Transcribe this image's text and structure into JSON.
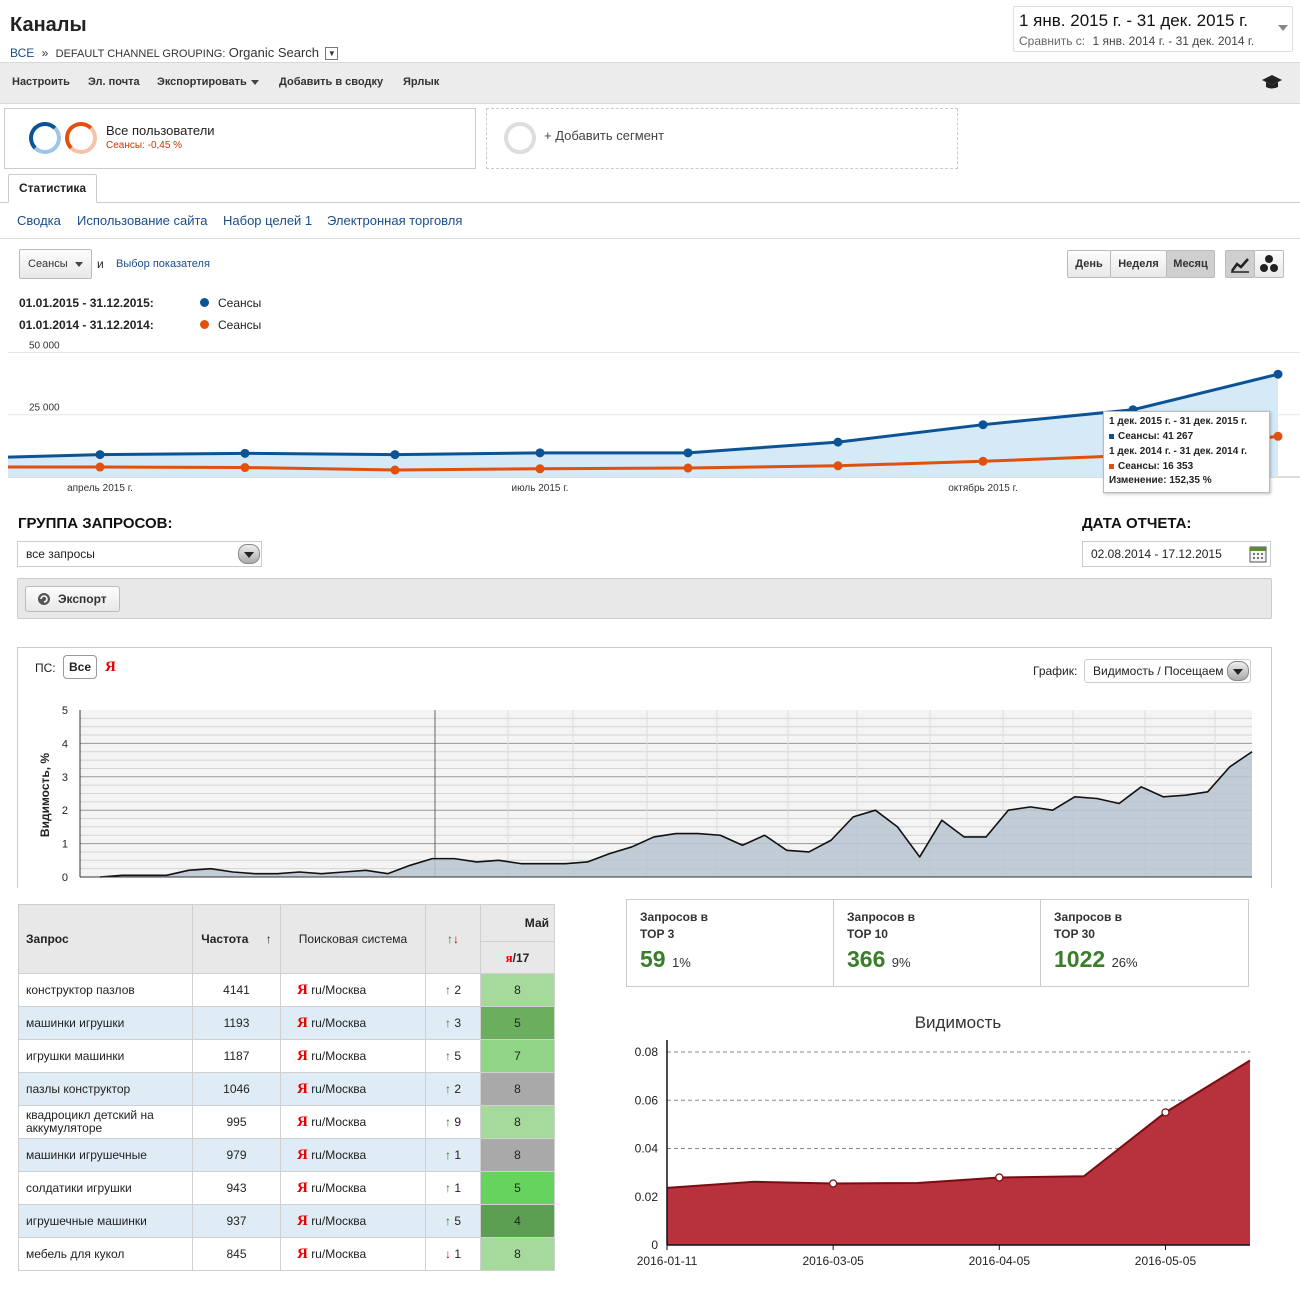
{
  "header": {
    "title": "Каналы",
    "breadcrumb_all": "ВСЕ",
    "breadcrumb_sep": "»",
    "breadcrumb_group": "DEFAULT CHANNEL GROUPING:",
    "breadcrumb_value": "Organic Search",
    "date_main": "1 янв. 2015 г. - 31 дек. 2015 г.",
    "date_compare_label": "Сравнить с:",
    "date_compare": "1 янв. 2014 г. - 31 дек. 2014 г."
  },
  "toolbar": {
    "customize": "Настроить",
    "email": "Эл. почта",
    "export": "Экспортировать",
    "add_dashboard": "Добавить в сводку",
    "shortcut": "Ярлык"
  },
  "segments": {
    "all_users": "Все пользователи",
    "all_users_sub": "Сеансы: -0,45 %",
    "add_segment": "+ Добавить сегмент"
  },
  "tabs": {
    "stats": "Статистика",
    "subnav": [
      "Сводка",
      "Использование сайта",
      "Набор целей 1",
      "Электронная торговля"
    ]
  },
  "chart_controls": {
    "metric": "Сеансы",
    "and": "и",
    "choose_metric": "Выбор показателя",
    "day": "День",
    "week": "Неделя",
    "month": "Месяц"
  },
  "legend": {
    "range1": "01.01.2015 - 31.12.2015:",
    "series1": "Сеансы",
    "range2": "01.01.2014 - 31.12.2014:",
    "series2": "Сеансы",
    "color1": "#0b5394",
    "color2": "#e0510e"
  },
  "tooltip": {
    "line1": "1 дек. 2015 г. - 31 дек. 2015 г.",
    "line2_label": "Сеансы: 41 267",
    "line3": "1 дек. 2014 г. - 31 дек. 2014 г.",
    "line4_label": "Сеансы: 16 353",
    "line5_label": "Изменение: 152,35 %"
  },
  "query_section": {
    "group_title": "ГРУППА ЗАПРОСОВ:",
    "group_value": "все запросы",
    "date_title": "ДАТА ОТЧЕТА:",
    "date_value": "02.08.2014 - 17.12.2015",
    "export_btn": "Экспорт"
  },
  "visibility_controls": {
    "ps_label": "ПС:",
    "all_btn": "Все",
    "ya": "Я",
    "graph_label": "График:",
    "graph_value": "Видимость / Посещаем"
  },
  "table": {
    "headers": {
      "query": "Запрос",
      "freq": "Частота",
      "sort_arrow": "↑",
      "engine": "Поисковая система",
      "change": "↑↓",
      "month": "Май",
      "ya": "я",
      "day": "/17"
    },
    "rows": [
      {
        "q": "конструктор пазлов",
        "f": "4141",
        "e": "ru/Москва",
        "dir": "↑",
        "d": "2",
        "pos": "8",
        "color": "#a6d99c"
      },
      {
        "q": "машинки игрушки",
        "f": "1193",
        "e": "ru/Москва",
        "dir": "↑",
        "d": "3",
        "pos": "5",
        "color": "#6aae5e"
      },
      {
        "q": "игрушки машинки",
        "f": "1187",
        "e": "ru/Москва",
        "dir": "↑",
        "d": "5",
        "pos": "7",
        "color": "#90d686"
      },
      {
        "q": "пазлы конструктор",
        "f": "1046",
        "e": "ru/Москва",
        "dir": "↑",
        "d": "2",
        "pos": "8",
        "color": "#a9a9a9"
      },
      {
        "q": "квадроцикл детский на аккумуляторе",
        "f": "995",
        "e": "ru/Москва",
        "dir": "↑",
        "d": "9",
        "pos": "8",
        "color": "#a6d99c"
      },
      {
        "q": "машинки игрушечные",
        "f": "979",
        "e": "ru/Москва",
        "dir": "↑",
        "d": "1",
        "pos": "8",
        "color": "#a9a9a9"
      },
      {
        "q": "солдатики игрушки",
        "f": "943",
        "e": "ru/Москва",
        "dir": "↑",
        "d": "1",
        "pos": "5",
        "color": "#66d35e"
      },
      {
        "q": "игрушечные машинки",
        "f": "937",
        "e": "ru/Москва",
        "dir": "↑",
        "d": "5",
        "pos": "4",
        "color": "#5c9e52"
      },
      {
        "q": "мебель для кукол",
        "f": "845",
        "e": "ru/Москва",
        "dir": "↓",
        "d": "1",
        "pos": "8",
        "color": "#a6d99c"
      }
    ]
  },
  "stats": [
    {
      "label1": "Запросов в",
      "label2": "TOP 3",
      "num": "59",
      "pct": "1%"
    },
    {
      "label1": "Запросов в",
      "label2": "TOP 10",
      "num": "366",
      "pct": "9%"
    },
    {
      "label1": "Запросов в",
      "label2": "TOP 30",
      "num": "1022",
      "pct": "26%"
    }
  ],
  "chart_data": [
    {
      "type": "line",
      "x_ticks": [
        "апрель 2015 г.",
        "июль 2015 г.",
        "октябрь 2015 г."
      ],
      "y_ticks": [
        "25 000",
        "50 000"
      ],
      "ylim": [
        0,
        55000
      ],
      "series": [
        {
          "name": "Сеансы",
          "color": "#0b5394",
          "values": [
            8000,
            9000,
            9500,
            9000,
            9700,
            9700,
            14000,
            21000,
            27000,
            41267
          ]
        },
        {
          "name": "Сеансы",
          "color": "#e0510e",
          "values": [
            4000,
            4000,
            3800,
            2800,
            3300,
            3600,
            4500,
            6300,
            8700,
            16353
          ]
        }
      ]
    },
    {
      "type": "area",
      "ylabel": "Видимость, %",
      "y_ticks": [
        "0",
        "1",
        "2",
        "3",
        "4",
        "5"
      ],
      "ylim": [
        0,
        5
      ],
      "values": [
        0,
        0.05,
        0.05,
        0.05,
        0.2,
        0.25,
        0.15,
        0.1,
        0.1,
        0.15,
        0.1,
        0.15,
        0.2,
        0.1,
        0.35,
        0.55,
        0.55,
        0.45,
        0.5,
        0.4,
        0.4,
        0.4,
        0.45,
        0.7,
        0.9,
        1.2,
        1.3,
        1.3,
        1.25,
        0.95,
        1.25,
        0.8,
        0.75,
        1.1,
        1.8,
        2.0,
        1.5,
        0.6,
        1.7,
        1.2,
        1.2,
        2.0,
        2.1,
        2.0,
        2.4,
        2.35,
        2.2,
        2.7,
        2.4,
        2.45,
        2.55,
        3.3,
        3.75
      ]
    },
    {
      "type": "area",
      "title": "Видимость",
      "categories": [
        "2016-01-11",
        "2016-03-05",
        "2016-04-05",
        "2016-05-05"
      ],
      "y_ticks": [
        "0",
        "0.02",
        "0.04",
        "0.06",
        "0.08"
      ],
      "ylim": [
        0,
        0.085
      ],
      "x": [
        0,
        0.15,
        0.285,
        0.43,
        0.57,
        0.715,
        0.855,
        1.0
      ],
      "values": [
        0.0237,
        0.0262,
        0.0255,
        0.0257,
        0.028,
        0.0285,
        0.055,
        0.0765
      ]
    }
  ]
}
